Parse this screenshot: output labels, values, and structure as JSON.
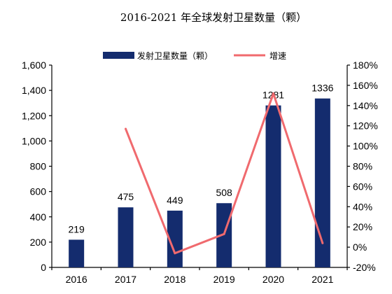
{
  "chart_data": {
    "type": "bar",
    "title": "2016-2021 年全球发射卫星数量（颗）",
    "categories": [
      "2016",
      "2017",
      "2018",
      "2019",
      "2020",
      "2021"
    ],
    "series": [
      {
        "name": "发射卫星数量（颗）",
        "type": "bar",
        "axis": "left",
        "color": "#142c6e",
        "values": [
          219,
          475,
          449,
          508,
          1281,
          1336
        ]
      },
      {
        "name": "增速",
        "type": "line",
        "axis": "right",
        "color": "#f06a6e",
        "values": [
          null,
          117,
          -6,
          13,
          152,
          4
        ]
      }
    ],
    "data_labels": [
      "219",
      "475",
      "449",
      "508",
      "1281",
      "1336"
    ],
    "left_axis": {
      "ylim": [
        0,
        1600
      ],
      "ticks": [
        0,
        200,
        400,
        600,
        800,
        1000,
        1200,
        1400,
        1600
      ],
      "tick_labels": [
        "0",
        "200",
        "400",
        "600",
        "800",
        "1,000",
        "1,200",
        "1,400",
        "1,600"
      ]
    },
    "right_axis": {
      "ylim": [
        -20,
        180
      ],
      "ticks": [
        -20,
        0,
        20,
        40,
        60,
        80,
        100,
        120,
        140,
        160,
        180
      ],
      "tick_labels": [
        "-20%",
        "0%",
        "20%",
        "40%",
        "60%",
        "80%",
        "100%",
        "120%",
        "140%",
        "160%",
        "180%"
      ]
    },
    "legend": {
      "position": "top",
      "labels": [
        "发射卫星数量（颗）",
        "增速"
      ]
    },
    "grid": false
  }
}
